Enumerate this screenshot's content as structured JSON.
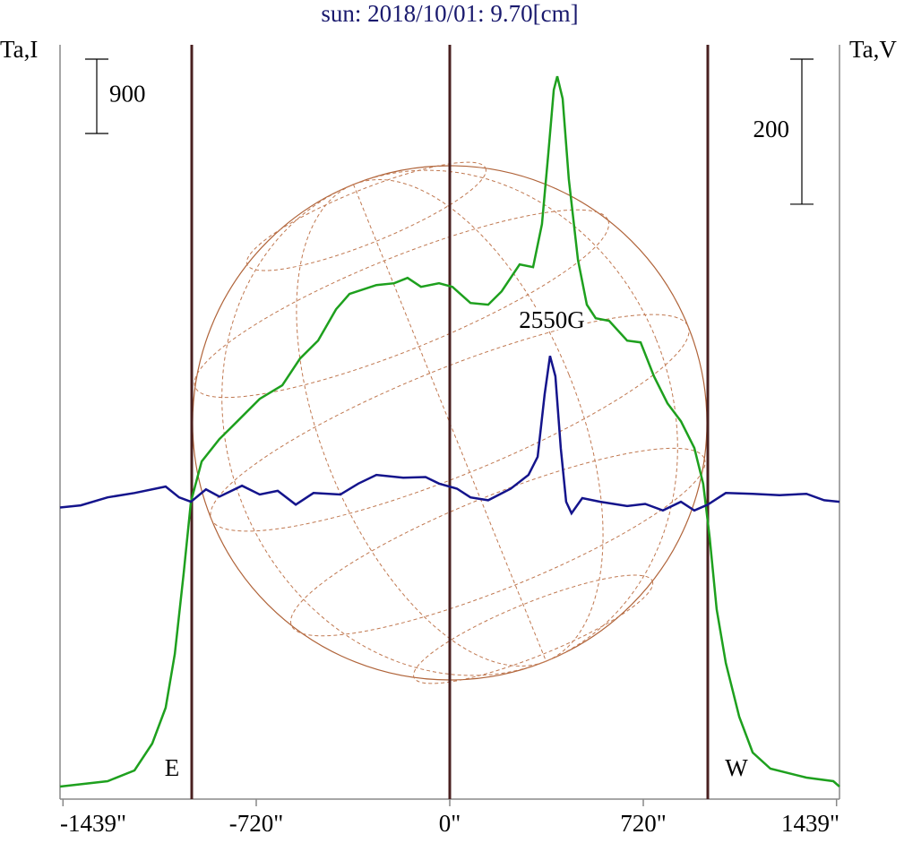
{
  "chart_data": {
    "type": "line",
    "title": "sun: 2018/10/01: 9.70[cm]",
    "y_label": "Ta,I",
    "y2_label": "Ta,V",
    "xlim": [
      -1450,
      1450
    ],
    "xticks": [
      {
        "value": -1439,
        "label": "-1439\""
      },
      {
        "value": -720,
        "label": "-720\""
      },
      {
        "value": 0,
        "label": "0\""
      },
      {
        "value": 720,
        "label": "720\""
      },
      {
        "value": 1439,
        "label": "1439\""
      }
    ],
    "ylim": [
      0,
      9130
    ],
    "y2lim": [
      -400,
      640
    ],
    "scale_bars": [
      {
        "value": 900,
        "axis": "y"
      },
      {
        "value": 200,
        "axis": "y2"
      }
    ],
    "vlines": [
      -960,
      0,
      960
    ],
    "annotations": [
      "E",
      "W",
      "2550G"
    ],
    "series": [
      {
        "name": "Ta,I",
        "color": "#1ea01e",
        "x": [
          -1450,
          -1273,
          -1173,
          -1107,
          -1057,
          -1023,
          -990,
          -963,
          -923,
          -857,
          -790,
          -707,
          -623,
          -557,
          -490,
          -423,
          -373,
          -273,
          -207,
          -157,
          -107,
          -40,
          10,
          77,
          143,
          193,
          260,
          310,
          343,
          367,
          387,
          400,
          420,
          443,
          477,
          510,
          543,
          593,
          660,
          710,
          760,
          810,
          860,
          910,
          943,
          967,
          993,
          1027,
          1077,
          1127,
          1193,
          1327,
          1427,
          1450
        ],
        "values": [
          152,
          217,
          347,
          672,
          1106,
          1756,
          2732,
          3599,
          4087,
          4358,
          4574,
          4845,
          5008,
          5333,
          5550,
          5929,
          6114,
          6222,
          6244,
          6309,
          6200,
          6244,
          6200,
          6005,
          5984,
          6146,
          6471,
          6439,
          6959,
          7826,
          8585,
          8748,
          8477,
          7501,
          6526,
          5984,
          5821,
          5789,
          5550,
          5528,
          5116,
          4791,
          4574,
          4249,
          3816,
          3165,
          2298,
          1648,
          997,
          564,
          369,
          260,
          217,
          152
        ]
      },
      {
        "name": "Ta,V",
        "color": "#14148c",
        "axis": "y2",
        "x": [
          -1450,
          -1373,
          -1273,
          -1173,
          -1057,
          -1007,
          -963,
          -907,
          -857,
          -773,
          -707,
          -640,
          -573,
          -507,
          -407,
          -340,
          -273,
          -173,
          -90,
          -40,
          27,
          77,
          143,
          227,
          293,
          327,
          353,
          373,
          393,
          413,
          433,
          453,
          493,
          560,
          660,
          727,
          793,
          860,
          910,
          960,
          1027,
          1127,
          1227,
          1327,
          1393,
          1450
        ],
        "values": [
          2,
          5,
          16,
          22,
          31,
          16,
          10,
          27,
          17,
          32,
          20,
          25,
          6,
          22,
          20,
          35,
          47,
          43,
          44,
          35,
          28,
          16,
          12,
          28,
          47,
          72,
          158,
          211,
          183,
          84,
          10,
          -6,
          15,
          10,
          4,
          7,
          -2,
          10,
          -2,
          6,
          22,
          21,
          19,
          21,
          12,
          10
        ]
      }
    ]
  }
}
